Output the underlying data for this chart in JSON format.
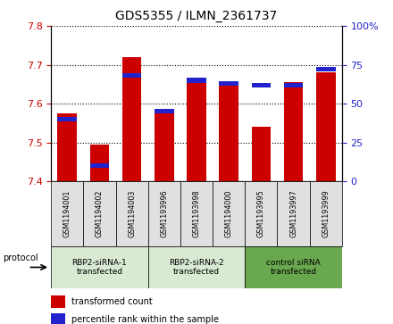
{
  "title": "GDS5355 / ILMN_2361737",
  "samples": [
    "GSM1194001",
    "GSM1194002",
    "GSM1194003",
    "GSM1193996",
    "GSM1193998",
    "GSM1194000",
    "GSM1193995",
    "GSM1193997",
    "GSM1193999"
  ],
  "red_values": [
    7.575,
    7.495,
    7.72,
    7.585,
    7.66,
    7.655,
    7.54,
    7.655,
    7.68
  ],
  "blue_percentiles": [
    40,
    10,
    68,
    45,
    65,
    63,
    62,
    62,
    72
  ],
  "ylim_left": [
    7.4,
    7.8
  ],
  "ylim_right": [
    0,
    100
  ],
  "yticks_left": [
    7.4,
    7.5,
    7.6,
    7.7,
    7.8
  ],
  "yticks_right": [
    0,
    25,
    50,
    75,
    100
  ],
  "bar_bottom": 7.4,
  "red_color": "#cc0000",
  "blue_color": "#2222cc",
  "groups": [
    {
      "label": "RBP2-siRNA-1\ntransfected",
      "indices": [
        0,
        1,
        2
      ],
      "color": "#d9ead3"
    },
    {
      "label": "RBP2-siRNA-2\ntransfected",
      "indices": [
        3,
        4,
        5
      ],
      "color": "#d9ead3"
    },
    {
      "label": "control siRNA\ntransfected",
      "indices": [
        6,
        7,
        8
      ],
      "color": "#6aa84f"
    }
  ],
  "protocol_label": "protocol",
  "legend_items": [
    {
      "color": "#cc0000",
      "label": "transformed count"
    },
    {
      "color": "#2222cc",
      "label": "percentile rank within the sample"
    }
  ],
  "grid_style": "dotted",
  "bg_color": "#ffffff",
  "plot_bg": "#ffffff",
  "bar_width": 0.6,
  "blue_bar_height": 3
}
